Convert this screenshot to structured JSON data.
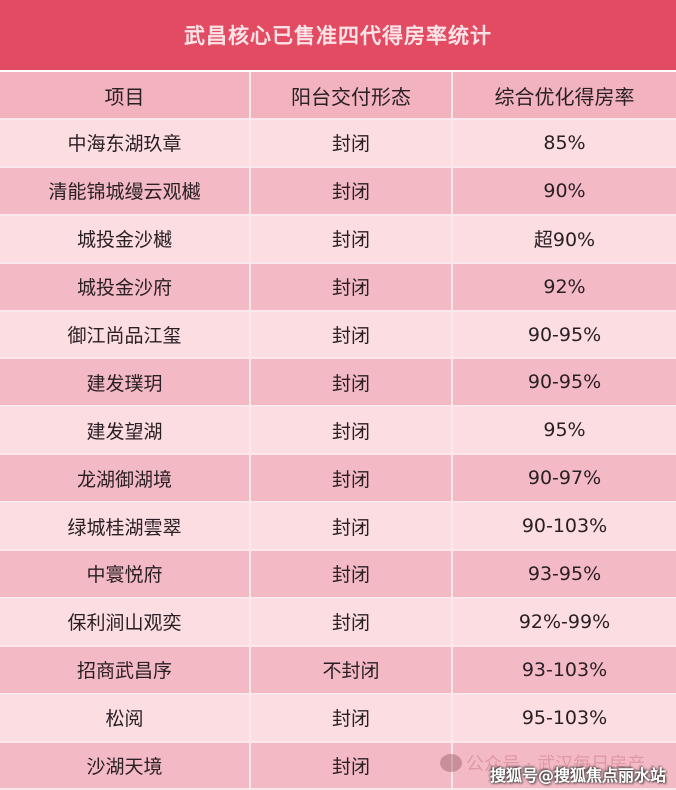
{
  "title": "武昌核心已售准四代得房率统计",
  "headers": [
    "项目",
    "阳台交付形态",
    "综合优化得房率"
  ],
  "rows": [
    [
      "中海东湖玖章",
      "封闭",
      "85%"
    ],
    [
      "清能锦城缦云观樾",
      "封闭",
      "90%"
    ],
    [
      "城投金沙樾",
      "封闭",
      "超90%"
    ],
    [
      "城投金沙府",
      "封闭",
      "92%"
    ],
    [
      "御江尚品江玺",
      "封闭",
      "90-95%"
    ],
    [
      "建发璞玥",
      "封闭",
      "90-95%"
    ],
    [
      "建发望湖",
      "封闭",
      "95%"
    ],
    [
      "龙湖御湖境",
      "封闭",
      "90-97%"
    ],
    [
      "绿城桂湖雲翠",
      "封闭",
      "90-103%"
    ],
    [
      "中寰悦府",
      "封闭",
      "93-95%"
    ],
    [
      "保利涧山观奕",
      "封闭",
      "92%-99%"
    ],
    [
      "招商武昌序",
      "不封闭",
      "93-103%"
    ],
    [
      "松阅",
      "封闭",
      "95-103%"
    ],
    [
      "沙湖天境",
      "封闭",
      ""
    ]
  ],
  "watermarks": {
    "official_account": "公众号 · 武汉每日房产",
    "sohu": "搜狐号@搜狐焦点丽水站",
    "icon": "wechat-icon"
  },
  "colors": {
    "title_bg": "#e24b62",
    "header_bg": "#f2b3be",
    "row_light": "#fbdde2",
    "row_dark": "#f3bac5"
  }
}
